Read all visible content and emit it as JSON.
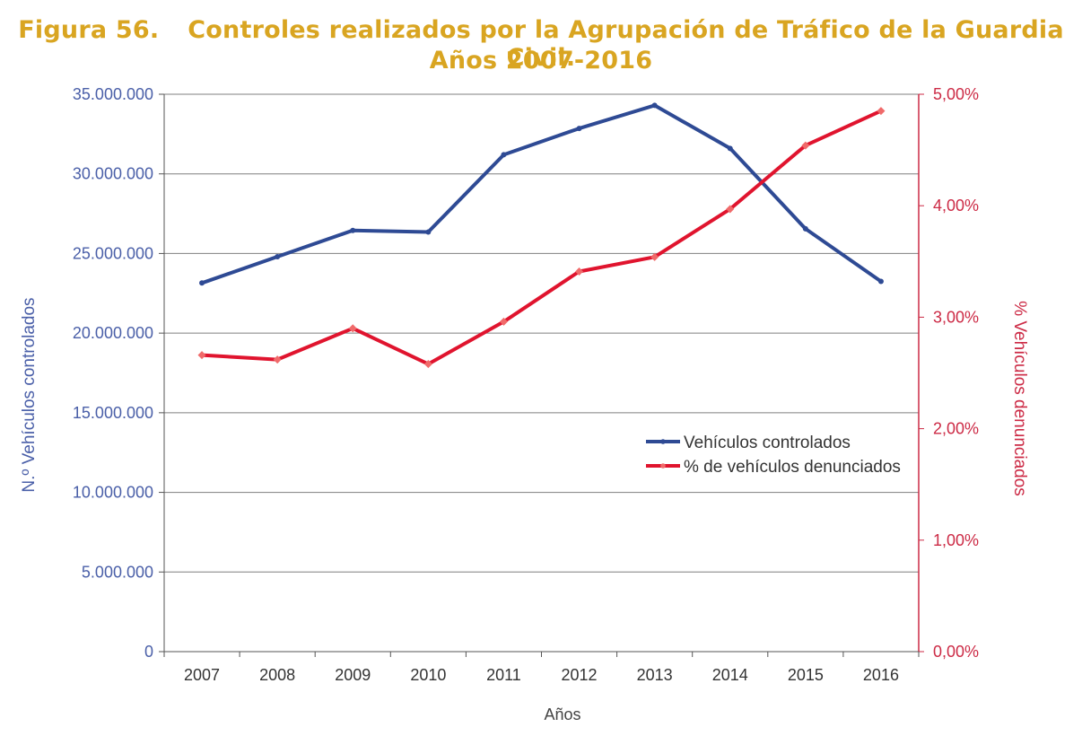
{
  "header": {
    "figure_label": "Figura 56.",
    "title_line1": "Controles realizados por la Agrupación de Tráfico de la Guardia Civil.",
    "title_line2": "Años 2007-2016"
  },
  "colors": {
    "title": "#d9a521",
    "series_blue": "#2e4a94",
    "series_red": "#e0142e",
    "axis_left": "#4a5fa8",
    "axis_right": "#cc2a45",
    "grid": "#7f7f7f"
  },
  "chart_data": {
    "type": "line",
    "title": "Controles realizados por la Agrupación de Tráfico de la Guardia Civil. Años 2007-2016",
    "xlabel": "Años",
    "ylabel_left": "N.º Vehículos controlados",
    "ylabel_right": "% Vehículos denunciados",
    "categories": [
      "2007",
      "2008",
      "2009",
      "2010",
      "2011",
      "2012",
      "2013",
      "2014",
      "2015",
      "2016"
    ],
    "y_left": {
      "min": 0,
      "max": 35000000,
      "ticks": [
        0,
        5000000,
        10000000,
        15000000,
        20000000,
        25000000,
        30000000,
        35000000
      ],
      "tick_labels": [
        "0",
        "5.000.000",
        "10.000.000",
        "15.000.000",
        "20.000.000",
        "25.000.000",
        "30.000.000",
        "35.000.000"
      ]
    },
    "y_right": {
      "min": 0,
      "max": 5,
      "ticks": [
        0,
        1,
        2,
        3,
        4,
        5
      ],
      "tick_labels": [
        "0,00%",
        "1,00%",
        "2,00%",
        "3,00%",
        "4,00%",
        "5,00%"
      ]
    },
    "series": [
      {
        "name": "Vehículos controlados",
        "axis": "left",
        "color": "#2e4a94",
        "values": [
          23150000,
          24800000,
          26450000,
          26350000,
          31200000,
          32850000,
          34300000,
          31600000,
          26550000,
          23250000
        ]
      },
      {
        "name": "% de vehículos denunciados",
        "axis": "right",
        "color": "#e0142e",
        "values": [
          2.66,
          2.62,
          2.9,
          2.58,
          2.96,
          3.41,
          3.54,
          3.97,
          4.54,
          4.85
        ]
      }
    ],
    "legend_position": "center-right",
    "grid": true
  }
}
